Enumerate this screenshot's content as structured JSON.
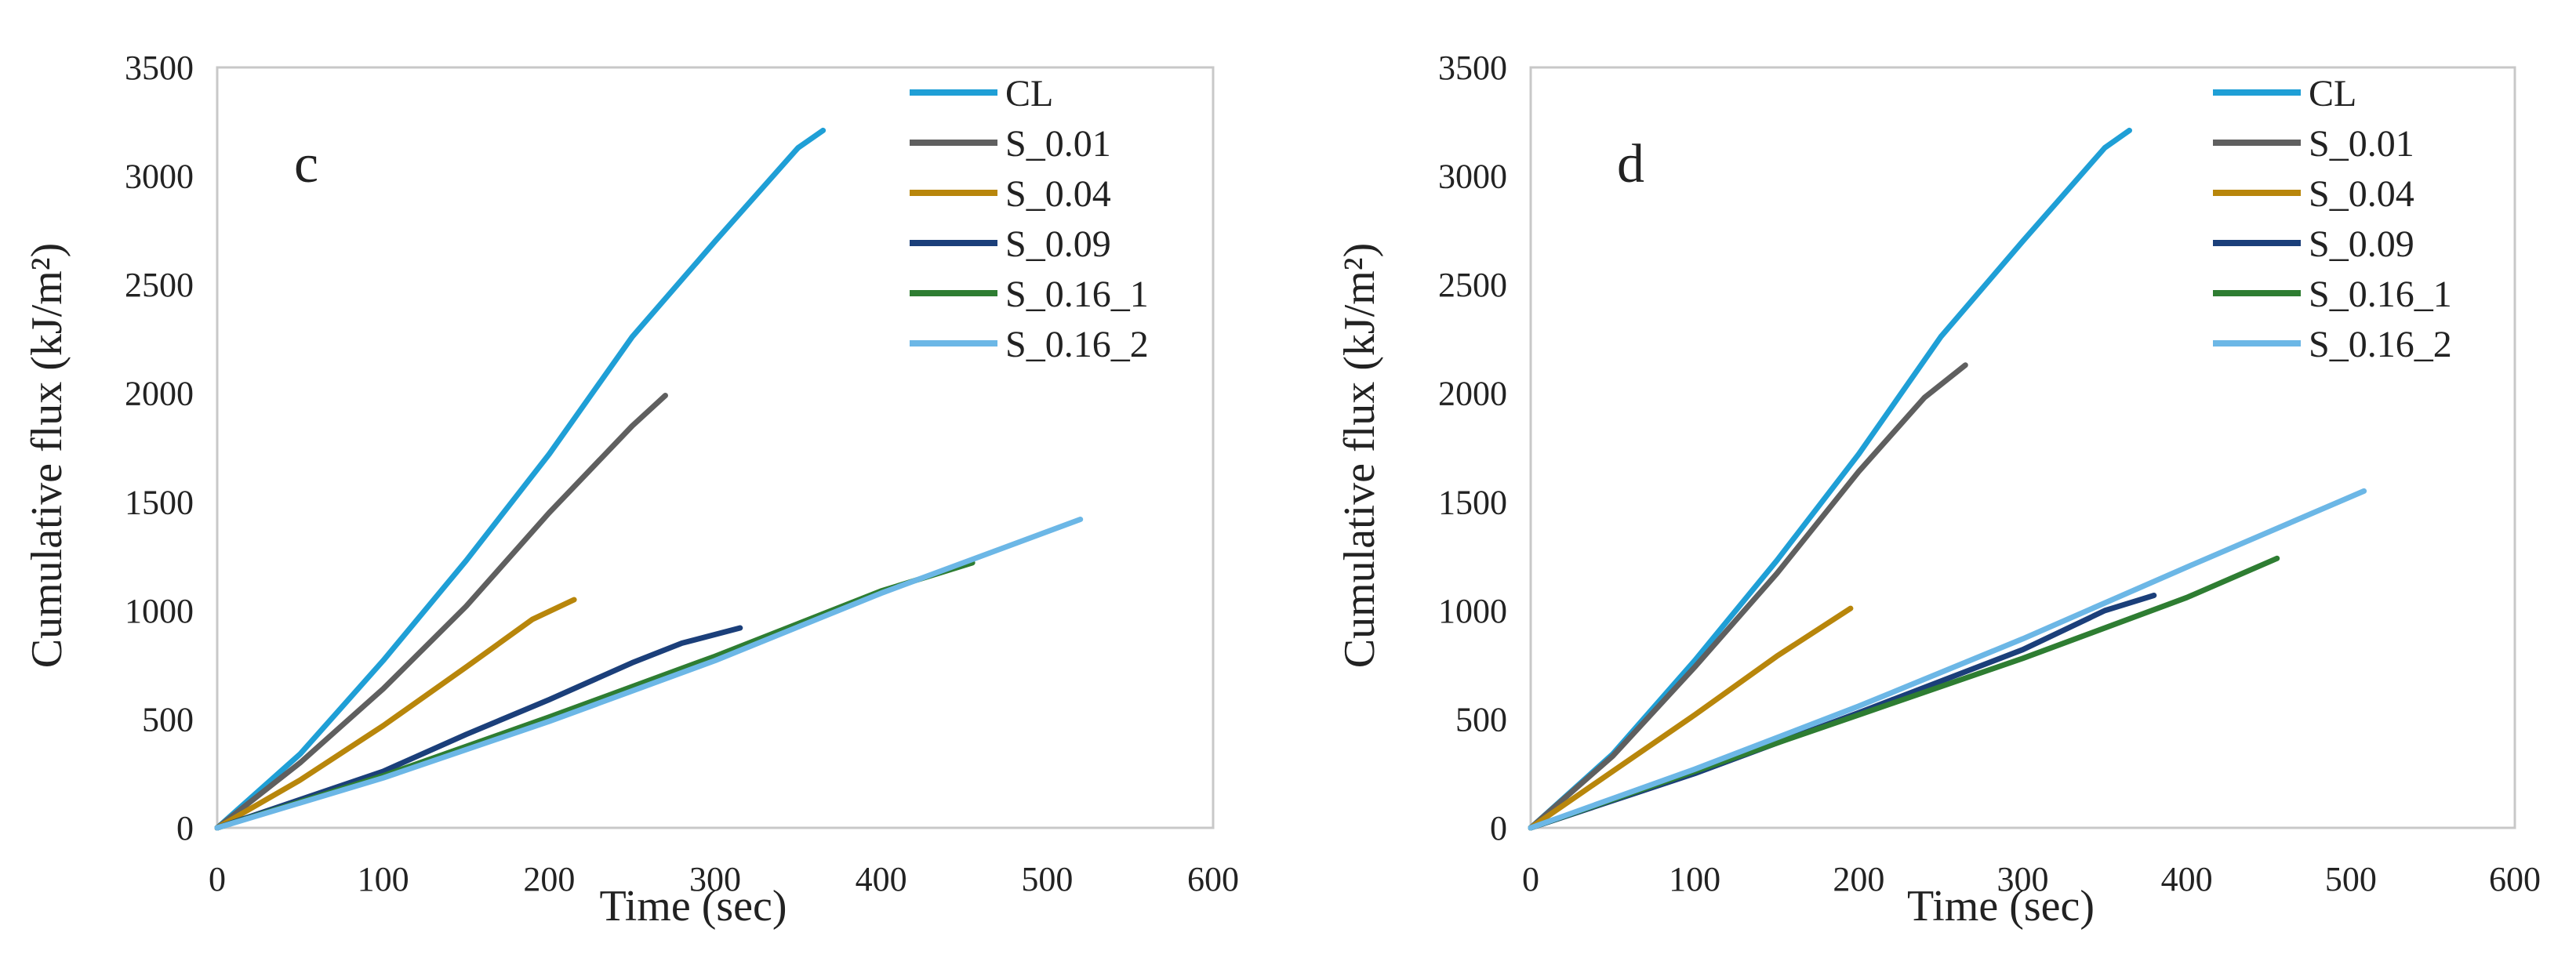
{
  "chart_data": [
    {
      "type": "line",
      "panel_label": "c",
      "xlabel": "Time (sec)",
      "ylabel": "Cumulative flux (kJ/m²)",
      "xlim": [
        0,
        600
      ],
      "ylim": [
        0,
        3500
      ],
      "xticks": [
        0,
        100,
        200,
        300,
        400,
        500,
        600
      ],
      "yticks": [
        0,
        500,
        1000,
        1500,
        2000,
        2500,
        3000,
        3500
      ],
      "legend_position": "top-right",
      "grid": false,
      "series": [
        {
          "name": "CL",
          "color": "#1f9fd6",
          "x": [
            0,
            50,
            100,
            150,
            200,
            250,
            300,
            350,
            365
          ],
          "y": [
            0,
            340,
            770,
            1230,
            1720,
            2260,
            2700,
            3130,
            3210
          ]
        },
        {
          "name": "S_0.01",
          "color": "#5f5f5f",
          "x": [
            0,
            50,
            100,
            150,
            200,
            250,
            270
          ],
          "y": [
            0,
            300,
            640,
            1020,
            1450,
            1850,
            1990
          ]
        },
        {
          "name": "S_0.04",
          "color": "#b8860b",
          "x": [
            0,
            50,
            100,
            150,
            190,
            215
          ],
          "y": [
            0,
            220,
            470,
            740,
            960,
            1050
          ]
        },
        {
          "name": "S_0.09",
          "color": "#1b3f7a",
          "x": [
            0,
            50,
            100,
            150,
            200,
            250,
            280,
            315
          ],
          "y": [
            0,
            130,
            260,
            430,
            590,
            760,
            850,
            920
          ]
        },
        {
          "name": "S_0.16_1",
          "color": "#2e7d32",
          "x": [
            0,
            100,
            200,
            300,
            400,
            455
          ],
          "y": [
            0,
            240,
            510,
            790,
            1090,
            1220
          ]
        },
        {
          "name": "S_0.16_2",
          "color": "#6cb7e6",
          "x": [
            0,
            100,
            200,
            300,
            400,
            520
          ],
          "y": [
            0,
            230,
            490,
            770,
            1080,
            1420
          ]
        }
      ]
    },
    {
      "type": "line",
      "panel_label": "d",
      "xlabel": "Time (sec)",
      "ylabel": "Cumulative flux (kJ/m²)",
      "xlim": [
        0,
        600
      ],
      "ylim": [
        0,
        3500
      ],
      "xticks": [
        0,
        100,
        200,
        300,
        400,
        500,
        600
      ],
      "yticks": [
        0,
        500,
        1000,
        1500,
        2000,
        2500,
        3000,
        3500
      ],
      "legend_position": "top-right",
      "grid": false,
      "series": [
        {
          "name": "CL",
          "color": "#1f9fd6",
          "x": [
            0,
            50,
            100,
            150,
            200,
            250,
            300,
            350,
            365
          ],
          "y": [
            0,
            340,
            770,
            1230,
            1720,
            2260,
            2700,
            3130,
            3210
          ]
        },
        {
          "name": "S_0.01",
          "color": "#5f5f5f",
          "x": [
            0,
            50,
            100,
            150,
            200,
            240,
            265
          ],
          "y": [
            0,
            330,
            740,
            1170,
            1640,
            1980,
            2130
          ]
        },
        {
          "name": "S_0.04",
          "color": "#b8860b",
          "x": [
            0,
            50,
            100,
            150,
            195
          ],
          "y": [
            0,
            260,
            520,
            790,
            1010
          ]
        },
        {
          "name": "S_0.09",
          "color": "#1b3f7a",
          "x": [
            0,
            100,
            200,
            300,
            350,
            380
          ],
          "y": [
            0,
            250,
            530,
            820,
            1000,
            1070
          ]
        },
        {
          "name": "S_0.16_1",
          "color": "#2e7d32",
          "x": [
            0,
            100,
            200,
            300,
            400,
            455
          ],
          "y": [
            0,
            260,
            520,
            780,
            1060,
            1240
          ]
        },
        {
          "name": "S_0.16_2",
          "color": "#6cb7e6",
          "x": [
            0,
            100,
            200,
            300,
            400,
            508
          ],
          "y": [
            0,
            270,
            560,
            870,
            1200,
            1550
          ]
        }
      ]
    }
  ]
}
